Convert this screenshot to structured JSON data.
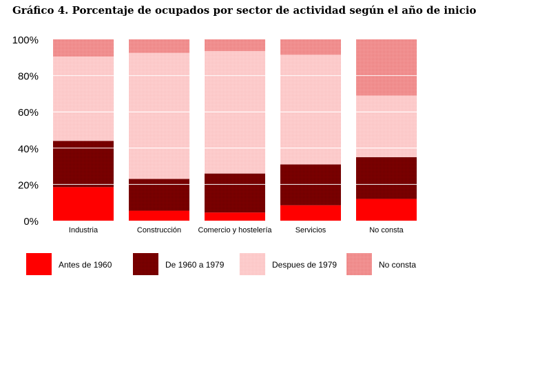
{
  "title": "Gráfico 4. Porcentaje de ocupados por sector de actividad según el año de inicio",
  "chart_data": {
    "type": "bar",
    "stacked": true,
    "percent": true,
    "categories": [
      "Industria",
      "Construcción",
      "Comercio y hostelería",
      "Servicios",
      "No consta"
    ],
    "series": [
      {
        "name": "Antes de 1960",
        "color": "#ff0000",
        "values": [
          18.5,
          5.5,
          4.5,
          8.5,
          12.0
        ]
      },
      {
        "name": "De 1960 a 1979",
        "color": "#800000",
        "values": [
          25.5,
          17.5,
          21.5,
          22.5,
          23.0
        ]
      },
      {
        "name": "Despues de 1979",
        "color": "#ffcccc",
        "values": [
          46.5,
          69.5,
          67.5,
          60.5,
          34.0
        ]
      },
      {
        "name": "No consta",
        "color": "#f08080",
        "values": [
          9.5,
          7.5,
          6.5,
          8.5,
          31.0
        ]
      }
    ],
    "yticks": [
      "0%",
      "20%",
      "40%",
      "60%",
      "80%",
      "100%"
    ],
    "ylim": [
      0,
      100
    ],
    "grid": true,
    "legend_position": "bottom"
  }
}
